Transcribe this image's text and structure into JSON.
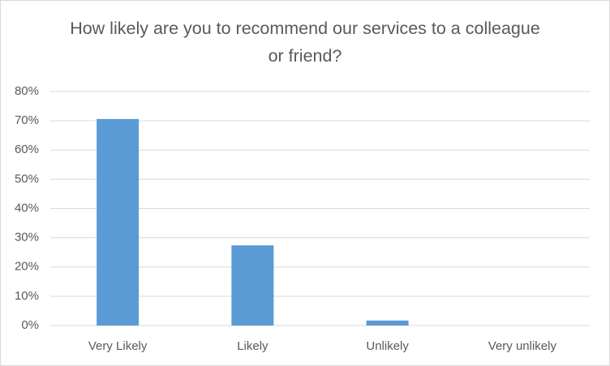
{
  "chart_data": {
    "type": "bar",
    "title": "How likely are you to recommend our services to a colleague or friend?",
    "categories": [
      "Very Likely",
      "Likely",
      "Unlikely",
      "Very unlikely"
    ],
    "values": [
      70.6,
      27.4,
      1.7,
      0
    ],
    "color": "#5b9bd5",
    "ylim": [
      0,
      80
    ],
    "yticks": [
      {
        "value": 0,
        "label": "0%"
      },
      {
        "value": 10,
        "label": "10%"
      },
      {
        "value": 20,
        "label": "20%"
      },
      {
        "value": 30,
        "label": "30%"
      },
      {
        "value": 40,
        "label": "40%"
      },
      {
        "value": 50,
        "label": "50%"
      },
      {
        "value": 60,
        "label": "60%"
      },
      {
        "value": 70,
        "label": "70%"
      },
      {
        "value": 80,
        "label": "80%"
      }
    ],
    "grid": true
  }
}
